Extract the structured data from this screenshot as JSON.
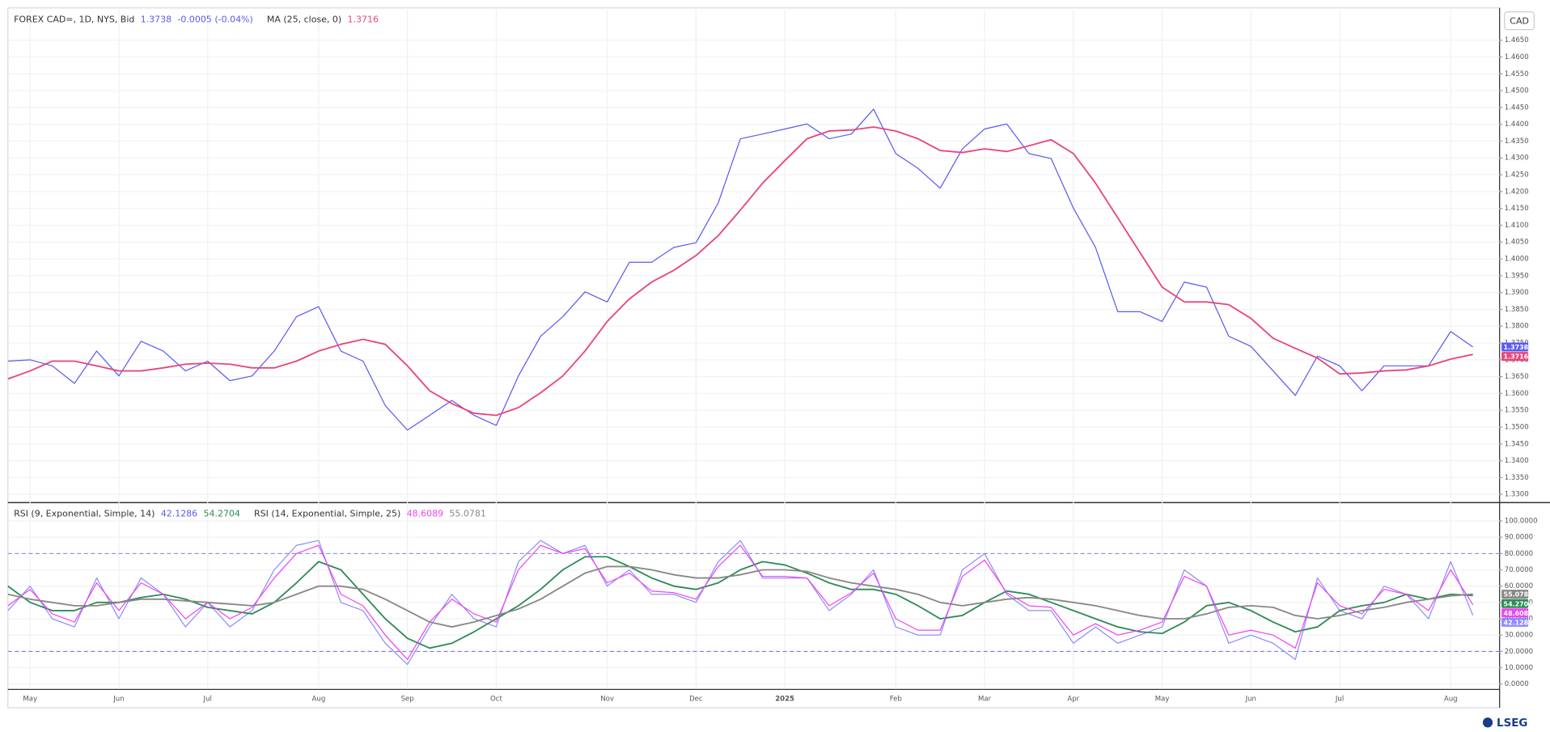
{
  "chart_data": [
    {
      "type": "line",
      "currency": "CAD",
      "change": "-0.0005 (-0.04%)",
      "ylim": [
        1.328,
        1.474
      ],
      "yticks": [
        {
          "value": 1.33,
          "label": "1.3300"
        },
        {
          "value": 1.335,
          "label": "1.3350"
        },
        {
          "value": 1.34,
          "label": "1.3400"
        },
        {
          "value": 1.345,
          "label": "1.3450"
        },
        {
          "value": 1.35,
          "label": "1.3500"
        },
        {
          "value": 1.355,
          "label": "1.3550"
        },
        {
          "value": 1.36,
          "label": "1.3600"
        },
        {
          "value": 1.365,
          "label": "1.3650"
        },
        {
          "value": 1.37,
          "label": "1.3700"
        },
        {
          "value": 1.375,
          "label": "1.3750"
        },
        {
          "value": 1.38,
          "label": "1.3800"
        },
        {
          "value": 1.385,
          "label": "1.3850"
        },
        {
          "value": 1.39,
          "label": "1.3900"
        },
        {
          "value": 1.395,
          "label": "1.3950"
        },
        {
          "value": 1.4,
          "label": "1.4000"
        },
        {
          "value": 1.405,
          "label": "1.4050"
        },
        {
          "value": 1.41,
          "label": "1.4100"
        },
        {
          "value": 1.415,
          "label": "1.4150"
        },
        {
          "value": 1.42,
          "label": "1.4200"
        },
        {
          "value": 1.425,
          "label": "1.4250"
        },
        {
          "value": 1.43,
          "label": "1.4300"
        },
        {
          "value": 1.435,
          "label": "1.4350"
        },
        {
          "value": 1.44,
          "label": "1.4400"
        },
        {
          "value": 1.445,
          "label": "1.4450"
        },
        {
          "value": 1.45,
          "label": "1.4500"
        },
        {
          "value": 1.455,
          "label": "1.4550"
        },
        {
          "value": 1.46,
          "label": "1.4600"
        },
        {
          "value": 1.465,
          "label": "1.4650"
        }
      ],
      "grid": true,
      "series": [
        {
          "name": "FOREX CAD=, 1D, NYS, Bid",
          "color": "#5a5af2",
          "values": [
            1.3696,
            1.37,
            1.3682,
            1.363,
            1.3726,
            1.3652,
            1.3755,
            1.3726,
            1.3667,
            1.3696,
            1.3638,
            1.3652,
            1.3726,
            1.3828,
            1.3858,
            1.3726,
            1.3696,
            1.3564,
            1.3491,
            1.3535,
            1.3579,
            1.3535,
            1.3505,
            1.3652,
            1.377,
            1.3828,
            1.3902,
            1.3872,
            1.399,
            1.399,
            1.4034,
            1.4048,
            1.4166,
            1.4357,
            1.4371,
            1.4386,
            1.4401,
            1.4357,
            1.4371,
            1.4445,
            1.4313,
            1.4269,
            1.421,
            1.4327,
            1.4386,
            1.4401,
            1.4313,
            1.4298,
            1.4151,
            1.4034,
            1.3843,
            1.3843,
            1.3814,
            1.3931,
            1.3916,
            1.377,
            1.374,
            1.3667,
            1.3594,
            1.3711,
            1.3682,
            1.3608,
            1.3682,
            1.3682,
            1.3682,
            1.3784,
            1.3738
          ]
        },
        {
          "name": "MA (25, close, 0)",
          "color": "#e8467a",
          "values": [
            1.3643,
            1.3667,
            1.3696,
            1.3696,
            1.3682,
            1.3667,
            1.3667,
            1.3676,
            1.3687,
            1.369,
            1.3687,
            1.3676,
            1.3676,
            1.3696,
            1.3726,
            1.3746,
            1.3761,
            1.3746,
            1.3682,
            1.3608,
            1.357,
            1.3541,
            1.3535,
            1.3558,
            1.3602,
            1.3652,
            1.3726,
            1.3814,
            1.3881,
            1.3931,
            1.3966,
            1.401,
            1.4069,
            1.4145,
            1.4225,
            1.4292,
            1.4357,
            1.438,
            1.4383,
            1.4392,
            1.438,
            1.4357,
            1.4322,
            1.4316,
            1.4327,
            1.4319,
            1.4336,
            1.4354,
            1.4313,
            1.4225,
            1.4122,
            1.4019,
            1.3916,
            1.3872,
            1.3872,
            1.3864,
            1.3823,
            1.3764,
            1.3734,
            1.3705,
            1.3658,
            1.3661,
            1.3667,
            1.367,
            1.3682,
            1.3702,
            1.3716
          ]
        }
      ]
    },
    {
      "type": "line",
      "categories": [
        null,
        "May",
        null,
        null,
        null,
        "Jun",
        null,
        null,
        null,
        "Jul",
        null,
        null,
        null,
        null,
        "Aug",
        null,
        null,
        null,
        "Sep",
        null,
        null,
        null,
        "Oct",
        null,
        null,
        null,
        null,
        "Nov",
        null,
        null,
        null,
        "Dec",
        null,
        null,
        null,
        "2025",
        null,
        null,
        null,
        null,
        "Feb",
        null,
        null,
        null,
        "Mar",
        null,
        null,
        null,
        "Apr",
        null,
        null,
        null,
        "May",
        null,
        null,
        null,
        "Jun",
        null,
        null,
        null,
        "Jul",
        null,
        null,
        null,
        null,
        "Aug",
        null
      ],
      "ylim": [
        -3,
        110.3
      ],
      "yticks": [
        {
          "value": 0,
          "label": "0.0000"
        },
        {
          "value": 10,
          "label": "10.0000"
        },
        {
          "value": 20,
          "label": "20.0000"
        },
        {
          "value": 30,
          "label": "30.0000"
        },
        {
          "value": 40,
          "label": "40.0000"
        },
        {
          "value": 50,
          "label": "50.0000"
        },
        {
          "value": 60,
          "label": "60.0000"
        },
        {
          "value": 70,
          "label": "70.0000"
        },
        {
          "value": 80,
          "label": "80.0000"
        },
        {
          "value": 90,
          "label": "90.0000"
        },
        {
          "value": 100,
          "label": "100.0000"
        }
      ],
      "hlines": [
        80,
        20
      ],
      "grid": true,
      "series": [
        {
          "name": "RSI (9, Exponential, Simple, 14)",
          "color": "#8c8cff",
          "values": [
            45,
            60,
            40,
            35,
            65,
            40,
            65,
            55,
            35,
            50,
            35,
            45,
            70,
            85,
            88,
            50,
            45,
            25,
            12,
            35,
            55,
            40,
            35,
            75,
            88,
            80,
            85,
            60,
            70,
            55,
            55,
            50,
            75,
            88,
            65,
            65,
            65,
            45,
            55,
            70,
            35,
            30,
            30,
            70,
            80,
            55,
            45,
            45,
            25,
            35,
            25,
            30,
            35,
            70,
            60,
            25,
            30,
            25,
            15,
            65,
            45,
            40,
            60,
            55,
            40,
            75,
            42.1286
          ]
        },
        {
          "color": "#2e8b57",
          "values": [
            60,
            50,
            45,
            45,
            50,
            50,
            53,
            55,
            52,
            47,
            45,
            43,
            50,
            62,
            75,
            70,
            55,
            40,
            28,
            22,
            25,
            32,
            40,
            48,
            58,
            70,
            78,
            78,
            72,
            65,
            60,
            58,
            62,
            70,
            75,
            73,
            68,
            62,
            58,
            58,
            55,
            48,
            40,
            42,
            50,
            57,
            55,
            50,
            45,
            40,
            35,
            32,
            31,
            38,
            48,
            50,
            45,
            38,
            32,
            35,
            45,
            48,
            50,
            55,
            52,
            55,
            54.2704
          ]
        },
        {
          "name": "RSI (14, Exponential, Simple, 25)",
          "color": "#f044f0",
          "values": [
            48,
            58,
            43,
            38,
            62,
            45,
            62,
            55,
            40,
            50,
            40,
            47,
            65,
            80,
            85,
            55,
            48,
            30,
            15,
            38,
            52,
            43,
            38,
            70,
            85,
            80,
            83,
            62,
            68,
            57,
            56,
            52,
            72,
            85,
            66,
            66,
            65,
            48,
            56,
            68,
            40,
            33,
            33,
            66,
            76,
            56,
            48,
            47,
            30,
            37,
            30,
            33,
            38,
            66,
            60,
            30,
            33,
            30,
            22,
            62,
            48,
            43,
            58,
            55,
            45,
            70,
            48.6089
          ]
        },
        {
          "color": "#888888",
          "values": [
            55,
            52,
            50,
            48,
            48,
            50,
            52,
            52,
            51,
            50,
            49,
            48,
            50,
            55,
            60,
            60,
            58,
            52,
            45,
            38,
            35,
            38,
            42,
            46,
            52,
            60,
            68,
            72,
            72,
            70,
            67,
            65,
            65,
            67,
            70,
            70,
            69,
            65,
            62,
            60,
            58,
            55,
            50,
            48,
            50,
            52,
            53,
            52,
            50,
            48,
            45,
            42,
            40,
            40,
            43,
            47,
            48,
            47,
            42,
            40,
            42,
            45,
            47,
            50,
            52,
            54,
            55.0781
          ]
        }
      ]
    }
  ],
  "logo": "LSEG"
}
